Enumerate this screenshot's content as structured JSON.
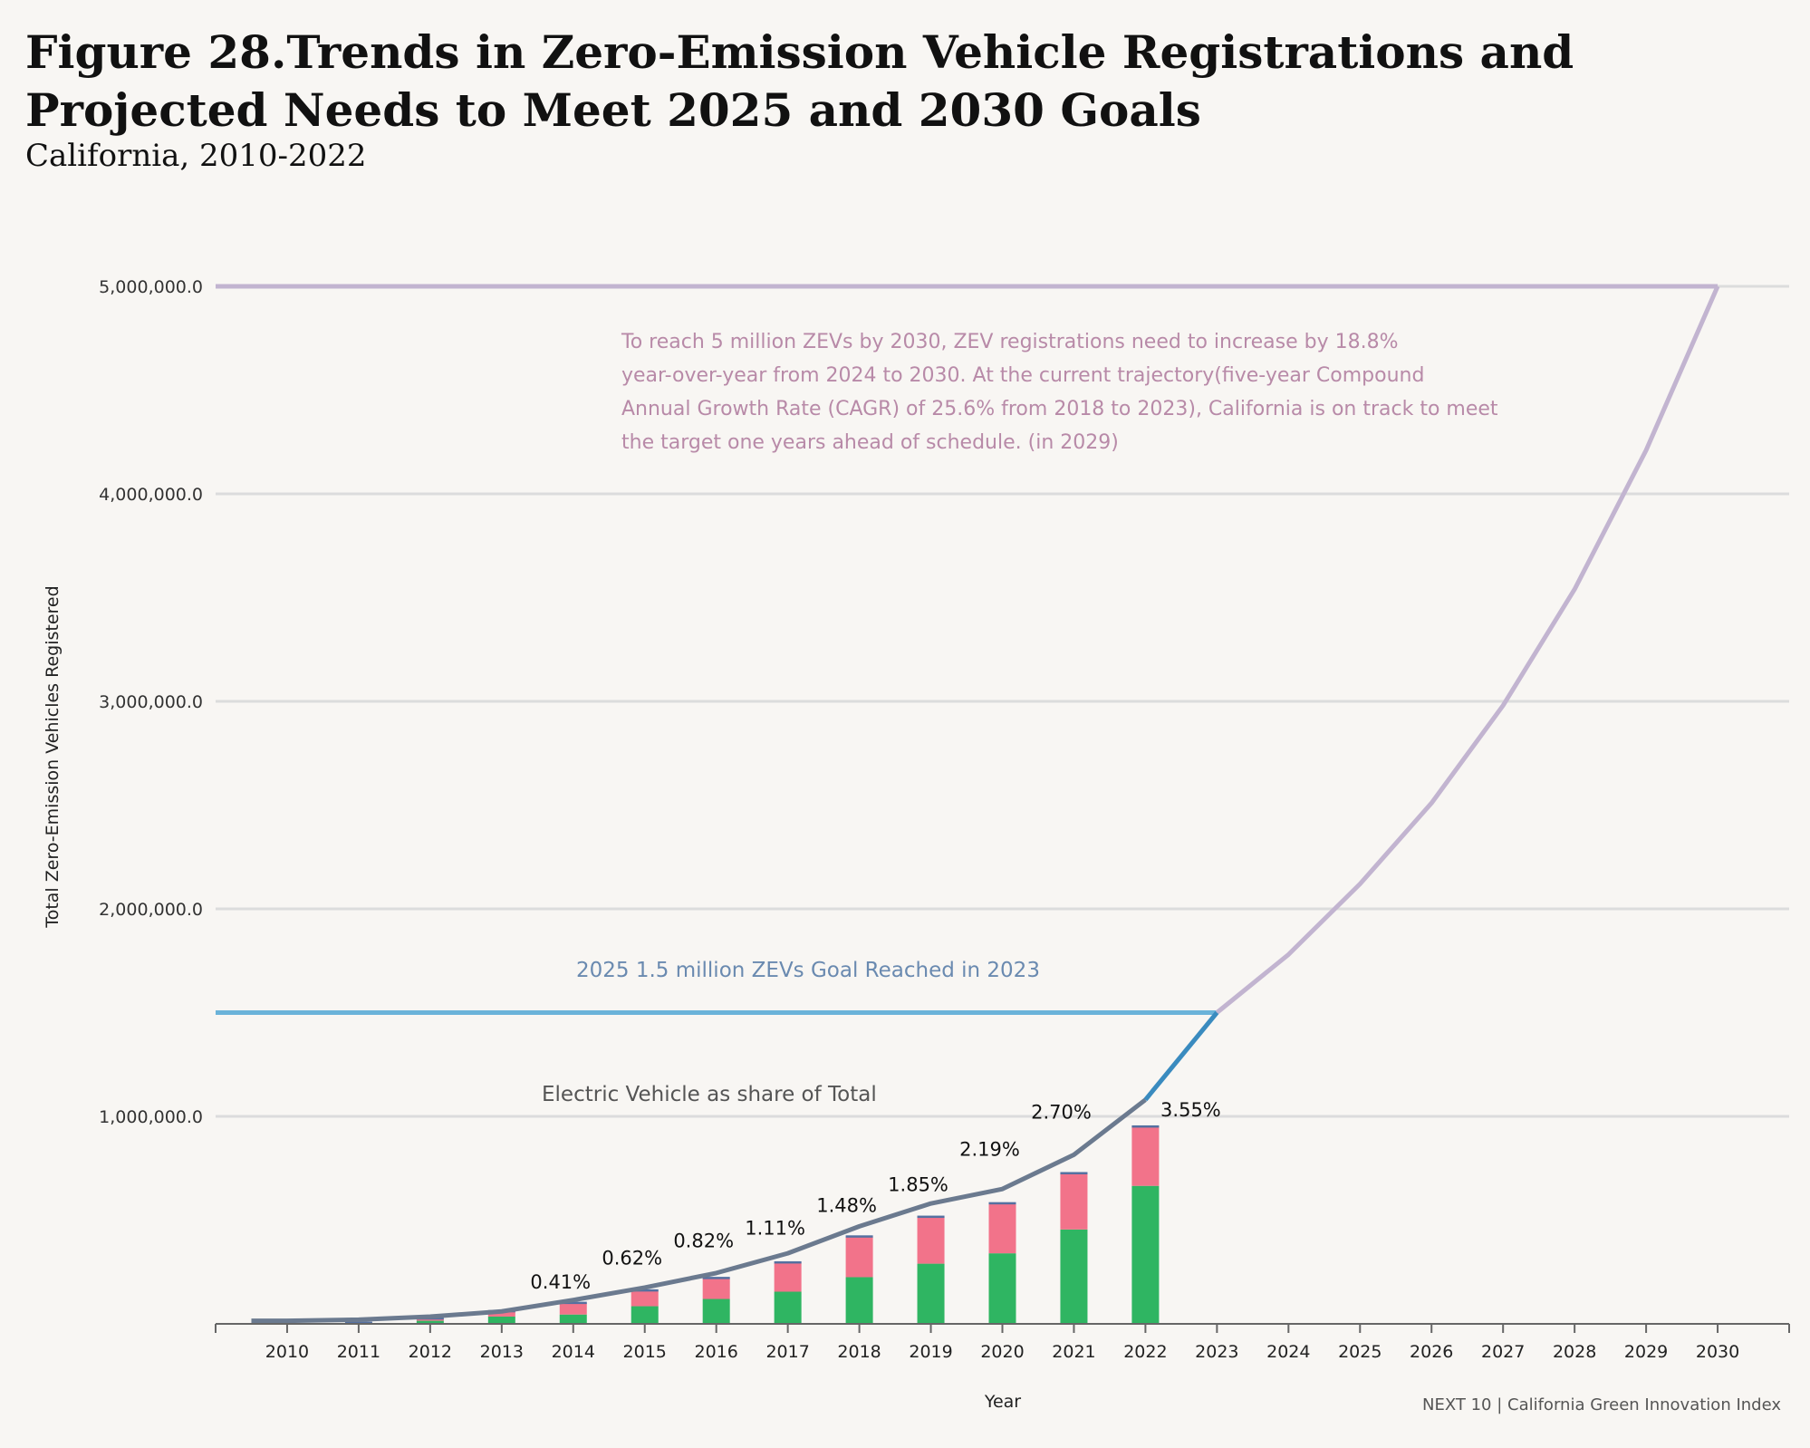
{
  "title": "Figure 28.Trends in Zero-Emission Vehicle Registrations and Projected Needs to Meet 2025 and 2030 Goals",
  "subtitle": "California, 2010-2022",
  "source": "NEXT 10 | California Green Innovation Index",
  "chart_data": {
    "type": "bar",
    "title": "Figure 28.Trends in Zero-Emission Vehicle Registrations and Projected Needs to Meet 2025 and 2030 Goals",
    "subtitle": "California, 2010-2022",
    "xlabel": "Year",
    "ylabel": "Total Zero-Emission Vehicles Registered",
    "ylim": [
      0,
      5000000
    ],
    "yticks": [
      1000000,
      2000000,
      3000000,
      4000000,
      5000000
    ],
    "ytick_labels": [
      "1,000,000.0",
      "2,000,000.0",
      "3,000,000.0",
      "4,000,000.0",
      "5,000,000.0"
    ],
    "grid": true,
    "x_categories": [
      "2010",
      "2011",
      "2012",
      "2013",
      "2014",
      "2015",
      "2016",
      "2017",
      "2018",
      "2019",
      "2020",
      "2021",
      "2022",
      "2023",
      "2024",
      "2025",
      "2026",
      "2027",
      "2028",
      "2029",
      "2030"
    ],
    "bar_years": [
      "2010",
      "2011",
      "2012",
      "2013",
      "2014",
      "2015",
      "2016",
      "2017",
      "2018",
      "2019",
      "2020",
      "2021",
      "2022"
    ],
    "bar_series": [
      {
        "color": "#2fb562",
        "values": [
          0,
          2000,
          15000,
          35000,
          45000,
          85000,
          120000,
          155000,
          225000,
          290000,
          340000,
          455000,
          665000
        ]
      },
      {
        "color": "#f2738a",
        "values": [
          0,
          2000,
          10000,
          25000,
          55000,
          75000,
          100000,
          140000,
          195000,
          225000,
          240000,
          270000,
          285000
        ]
      }
    ],
    "share_labels": [
      {
        "year": "2014",
        "label": "0.41%",
        "y": 170000
      },
      {
        "year": "2015",
        "label": "0.62%",
        "y": 285000
      },
      {
        "year": "2016",
        "label": "0.82%",
        "y": 370000
      },
      {
        "year": "2017",
        "label": "1.11%",
        "y": 430000
      },
      {
        "year": "2018",
        "label": "1.48%",
        "y": 540000
      },
      {
        "year": "2019",
        "label": "1.85%",
        "y": 640000
      },
      {
        "year": "2020",
        "label": "2.19%",
        "y": 810000
      },
      {
        "year": "2021",
        "label": "2.70%",
        "y": 990000
      },
      {
        "year": "2022",
        "label": "3.55%",
        "y": 1000000
      }
    ],
    "total_line": {
      "color": "#6b7a8f",
      "x": [
        "2009.5",
        "2010",
        "2011",
        "2012",
        "2013",
        "2014",
        "2015",
        "2016",
        "2017",
        "2018",
        "2019",
        "2020",
        "2021",
        "2022"
      ],
      "y": [
        15000,
        15000,
        20000,
        35000,
        60000,
        115000,
        175000,
        245000,
        340000,
        470000,
        580000,
        650000,
        815000,
        1080000
      ]
    },
    "trend_2023": {
      "color": "#3a8bbf",
      "x": [
        "2022",
        "2023"
      ],
      "y": [
        1080000,
        1500000
      ]
    },
    "goal_2025_line": {
      "value": 1500000,
      "color": "#6bb3d9"
    },
    "goal_2030_line": {
      "value": 5000000,
      "color": "#c2b4d0"
    },
    "projection": {
      "color": "#c2b4d0",
      "x": [
        "2023",
        "2024",
        "2025",
        "2026",
        "2027",
        "2028",
        "2029",
        "2030"
      ],
      "y": [
        1500000,
        1780000,
        2120000,
        2510000,
        2980000,
        3540000,
        4210000,
        5000000
      ]
    },
    "annotations": {
      "goal_2030_lines": [
        "To reach 5 million ZEVs by 2030, ZEV registrations need to increase by 18.8%",
        "year-over-year from 2024 to 2030. At the current trajectory(five-year Compound",
        "Annual Growth Rate (CAGR) of 25.6% from 2018 to 2023), California is on track to meet",
        "the target one years ahead of schedule. (in 2029)"
      ],
      "goal_2025": "2025 1.5 million ZEVs Goal Reached in 2023",
      "share_label": "Electric Vehicle as share of Total"
    },
    "colors": {
      "annotation_2030": "#b88aa8",
      "annotation_2025": "#6a8ab0",
      "share_note": "#555555"
    }
  }
}
